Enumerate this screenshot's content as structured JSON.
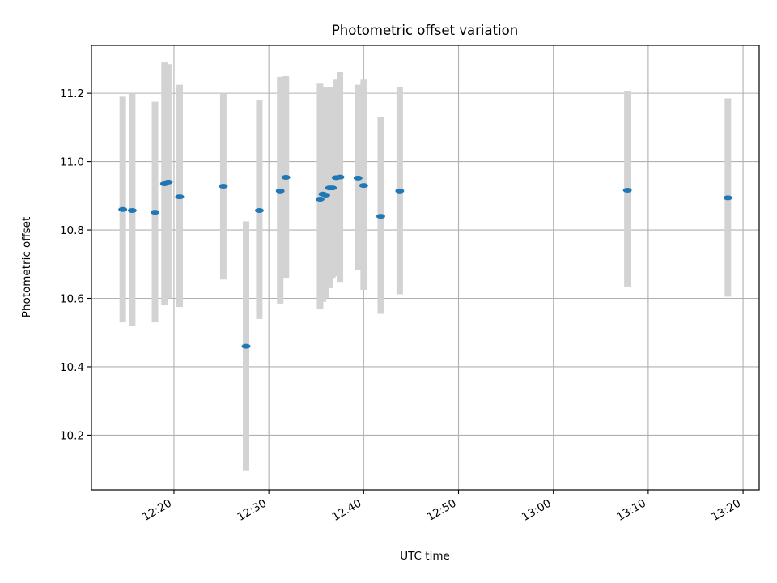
{
  "chart_data": {
    "type": "scatter",
    "title": "Photometric offset variation",
    "xlabel": "UTC time",
    "ylabel": "Photometric offset",
    "x_ticks": [
      "12:20",
      "12:30",
      "12:40",
      "12:50",
      "13:00",
      "13:10",
      "13:20"
    ],
    "y_ticks": [
      "10.2",
      "10.4",
      "10.6",
      "10.8",
      "11.0",
      "11.2"
    ],
    "xlim": [
      "12:11:18",
      "13:21:42"
    ],
    "ylim": [
      10.04,
      11.34
    ],
    "grid": true,
    "marker_color": "#1f77b4",
    "errorbar_color": "#d3d3d3",
    "series": [
      {
        "points": [
          {
            "t": "12:14:36",
            "y": 10.86,
            "lo": 10.53,
            "hi": 11.19
          },
          {
            "t": "12:15:36",
            "y": 10.857,
            "lo": 10.52,
            "hi": 11.2
          },
          {
            "t": "12:18:00",
            "y": 10.852,
            "lo": 10.53,
            "hi": 11.175
          },
          {
            "t": "12:19:00",
            "y": 10.935,
            "lo": 10.58,
            "hi": 11.29
          },
          {
            "t": "12:19:24",
            "y": 10.94,
            "lo": 10.6,
            "hi": 11.285
          },
          {
            "t": "12:20:36",
            "y": 10.897,
            "lo": 10.575,
            "hi": 11.225
          },
          {
            "t": "12:25:12",
            "y": 10.928,
            "lo": 10.655,
            "hi": 11.2
          },
          {
            "t": "12:27:36",
            "y": 10.46,
            "lo": 10.095,
            "hi": 10.825
          },
          {
            "t": "12:29:00",
            "y": 10.857,
            "lo": 10.54,
            "hi": 11.18
          },
          {
            "t": "12:31:12",
            "y": 10.914,
            "lo": 10.585,
            "hi": 11.248
          },
          {
            "t": "12:31:48",
            "y": 10.954,
            "lo": 10.66,
            "hi": 11.25
          },
          {
            "t": "12:35:24",
            "y": 10.89,
            "lo": 10.568,
            "hi": 11.228
          },
          {
            "t": "12:35:42",
            "y": 10.905,
            "lo": 10.59,
            "hi": 11.218
          },
          {
            "t": "12:36:00",
            "y": 10.902,
            "lo": 10.6,
            "hi": 11.215
          },
          {
            "t": "12:36:24",
            "y": 10.923,
            "lo": 10.63,
            "hi": 11.218
          },
          {
            "t": "12:36:42",
            "y": 10.923,
            "lo": 10.66,
            "hi": 11.215
          },
          {
            "t": "12:37:06",
            "y": 10.953,
            "lo": 10.665,
            "hi": 11.24
          },
          {
            "t": "12:37:30",
            "y": 10.955,
            "lo": 10.648,
            "hi": 11.262
          },
          {
            "t": "12:39:24",
            "y": 10.952,
            "lo": 10.682,
            "hi": 11.225
          },
          {
            "t": "12:40:00",
            "y": 10.93,
            "lo": 10.625,
            "hi": 11.24
          },
          {
            "t": "12:41:48",
            "y": 10.84,
            "lo": 10.555,
            "hi": 11.13
          },
          {
            "t": "12:43:48",
            "y": 10.914,
            "lo": 10.612,
            "hi": 11.218
          },
          {
            "t": "13:07:48",
            "y": 10.916,
            "lo": 10.632,
            "hi": 11.205
          },
          {
            "t": "13:18:24",
            "y": 10.894,
            "lo": 10.605,
            "hi": 11.185
          }
        ]
      }
    ]
  }
}
